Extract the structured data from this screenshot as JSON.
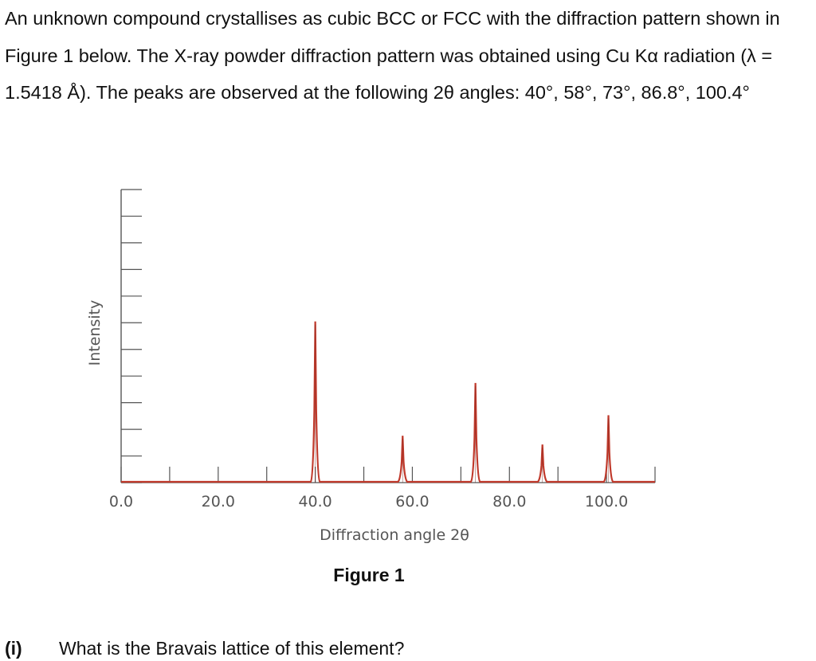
{
  "intro_text": "An unknown compound crystallises as cubic BCC or FCC with the diffraction pattern shown in Figure 1 below. The X-ray powder diffraction pattern was obtained using Cu Kα radiation (λ = 1.5418 Å). The peaks are observed at the following 2θ angles: 40°, 58°, 73°, 86.8°, 100.4°",
  "figure_caption": "Figure 1",
  "question": {
    "number": "(i)",
    "text": "What is the Bravais lattice of this element?"
  },
  "chart_data": {
    "type": "line",
    "xlabel": "Diffraction angle 2θ",
    "ylabel": "Intensity",
    "xlim": [
      0,
      110
    ],
    "ylim": [
      0,
      100
    ],
    "x_ticks": [
      "0.0",
      "20.0",
      "40.0",
      "60.0",
      "80.0",
      "100.0"
    ],
    "x_tick_values": [
      0,
      20,
      40,
      60,
      80,
      100
    ],
    "y_axis_numbers_shown": false,
    "grid": false,
    "line_color": "#c0392b",
    "peaks": [
      {
        "x": 40.0,
        "y": 55
      },
      {
        "x": 58.0,
        "y": 16
      },
      {
        "x": 73.0,
        "y": 34
      },
      {
        "x": 86.8,
        "y": 13
      },
      {
        "x": 100.4,
        "y": 23
      }
    ]
  }
}
